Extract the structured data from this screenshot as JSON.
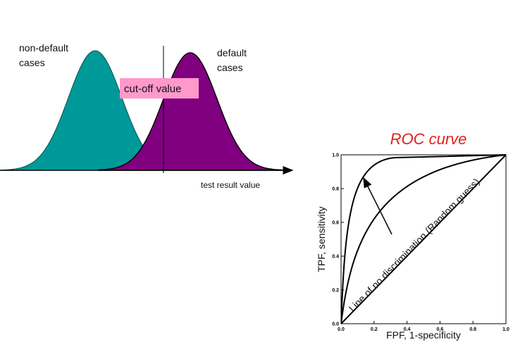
{
  "distributions": {
    "left_label": [
      "non-default",
      "cases"
    ],
    "right_label": [
      "default",
      "cases"
    ],
    "cutoff_label": "cut-off value",
    "axis_label": "test result value"
  },
  "roc": {
    "title": "ROC curve",
    "x_label": "FPF, 1-specificity",
    "y_label": "TPF, sensitivity",
    "diagonal_label": "Line of no discrimination (Random guess)",
    "xticks": [
      "0.0",
      "0.2",
      "0.4",
      "0.6",
      "0.8",
      "1.0"
    ],
    "yticks": [
      "0.0",
      "0.2",
      "0.4",
      "0.6",
      "0.8",
      "1.0"
    ]
  }
}
